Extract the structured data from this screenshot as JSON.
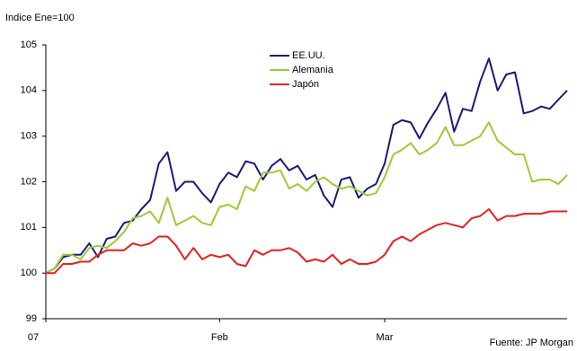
{
  "chart_data": {
    "type": "line",
    "y_label": "Indice Ene=100",
    "source": "Fuente: JP Morgan",
    "categories": [
      "07",
      null,
      null,
      null,
      null,
      null,
      null,
      null,
      null,
      null,
      null,
      null,
      null,
      null,
      null,
      null,
      null,
      null,
      null,
      null,
      "Feb",
      null,
      null,
      null,
      null,
      null,
      null,
      null,
      null,
      null,
      null,
      null,
      null,
      null,
      null,
      null,
      null,
      null,
      null,
      "Mar",
      null,
      null,
      null,
      null,
      null,
      null,
      null,
      null,
      null,
      null,
      null,
      null,
      null,
      null,
      null,
      null,
      null,
      null,
      null,
      null,
      null
    ],
    "series": [
      {
        "name": "EE.UU.",
        "color": "#1a1a7a",
        "values": [
          100.0,
          100.1,
          100.35,
          100.4,
          100.4,
          100.65,
          100.35,
          100.75,
          100.8,
          101.1,
          101.15,
          101.4,
          101.6,
          102.4,
          102.65,
          101.8,
          102.0,
          102.0,
          101.75,
          101.55,
          101.95,
          102.2,
          102.1,
          102.45,
          102.4,
          102.05,
          102.35,
          102.5,
          102.25,
          102.35,
          102.05,
          102.15,
          101.7,
          101.45,
          102.05,
          102.1,
          101.65,
          101.85,
          101.95,
          102.4,
          103.25,
          103.35,
          103.3,
          102.95,
          103.3,
          103.6,
          103.95,
          103.1,
          103.6,
          103.55,
          104.2,
          104.7,
          104.0,
          104.35,
          104.4,
          103.5,
          103.55,
          103.65,
          103.6,
          103.8,
          104.0
        ]
      },
      {
        "name": "Alemania",
        "color": "#99cc33",
        "values": [
          100.0,
          100.1,
          100.4,
          100.4,
          100.3,
          100.55,
          100.6,
          100.55,
          100.7,
          100.9,
          101.2,
          101.25,
          101.35,
          101.1,
          101.65,
          101.05,
          101.15,
          101.25,
          101.1,
          101.05,
          101.45,
          101.5,
          101.4,
          101.9,
          101.8,
          102.2,
          102.2,
          102.25,
          101.85,
          101.95,
          101.8,
          102.0,
          102.1,
          101.95,
          101.85,
          101.9,
          101.8,
          101.7,
          101.75,
          102.1,
          102.6,
          102.7,
          102.85,
          102.6,
          102.7,
          102.85,
          103.2,
          102.8,
          102.8,
          102.9,
          103.0,
          103.3,
          102.9,
          102.75,
          102.6,
          102.6,
          102.0,
          102.05,
          102.05,
          101.95,
          102.15
        ]
      },
      {
        "name": "Japón",
        "color": "#e8201c",
        "values": [
          100.0,
          100.0,
          100.2,
          100.2,
          100.25,
          100.25,
          100.4,
          100.5,
          100.5,
          100.5,
          100.65,
          100.6,
          100.65,
          100.8,
          100.8,
          100.6,
          100.3,
          100.55,
          100.3,
          100.4,
          100.35,
          100.4,
          100.2,
          100.15,
          100.5,
          100.4,
          100.5,
          100.5,
          100.55,
          100.45,
          100.25,
          100.3,
          100.25,
          100.4,
          100.2,
          100.3,
          100.2,
          100.2,
          100.25,
          100.4,
          100.7,
          100.8,
          100.7,
          100.85,
          100.95,
          101.05,
          101.1,
          101.05,
          101.0,
          101.2,
          101.25,
          101.4,
          101.15,
          101.25,
          101.25,
          101.3,
          101.3,
          101.3,
          101.35,
          101.35,
          101.35
        ]
      }
    ],
    "ylim": [
      99,
      105
    ],
    "yticks": [
      99,
      100,
      101,
      102,
      103,
      104,
      105
    ],
    "grid": false,
    "legend": "top-center"
  }
}
